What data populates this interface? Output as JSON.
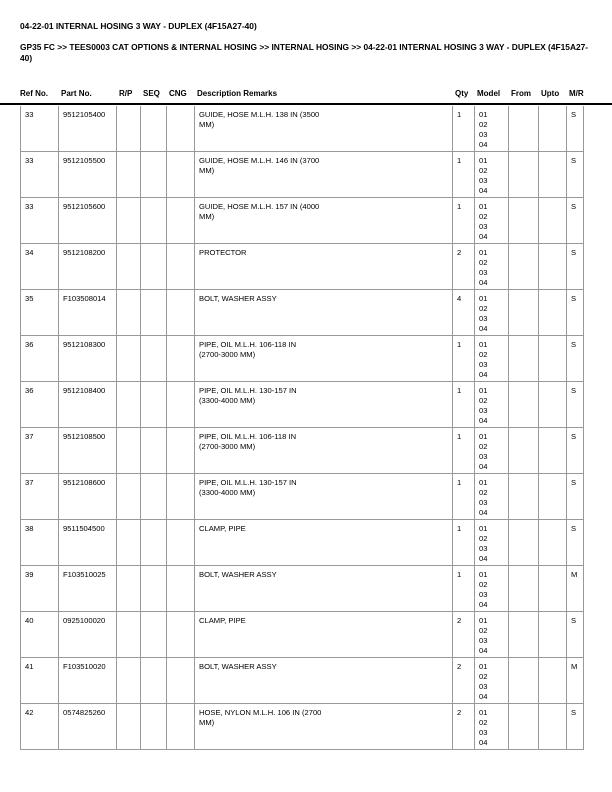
{
  "title": "04-22-01 INTERNAL HOSING 3 WAY - DUPLEX (4F15A27-40)",
  "breadcrumb": "GP35 FC >> TEES0003 CAT OPTIONS & INTERNAL HOSING >> INTERNAL HOSING >> 04-22-01 INTERNAL HOSING 3 WAY - DUPLEX (4F15A27-40)",
  "columns": [
    "Ref No.",
    "Part No.",
    "R/P",
    "SEQ",
    "CNG",
    "Description Remarks",
    "Qty",
    "Model",
    "From",
    "Upto",
    "M/R"
  ],
  "rows": [
    {
      "ref": "33",
      "part": "9512105400",
      "desc": "GUIDE, HOSE M.L.H. 138 IN (3500\nMM)",
      "qty": "1",
      "model": "01\n02\n03\n04",
      "mr": "S"
    },
    {
      "ref": "33",
      "part": "9512105500",
      "desc": "GUIDE, HOSE M.L.H. 146 IN (3700\nMM)",
      "qty": "1",
      "model": "01\n02\n03\n04",
      "mr": "S"
    },
    {
      "ref": "33",
      "part": "9512105600",
      "desc": "GUIDE, HOSE M.L.H. 157 IN (4000\nMM)",
      "qty": "1",
      "model": "01\n02\n03\n04",
      "mr": "S"
    },
    {
      "ref": "34",
      "part": "9512108200",
      "desc": "PROTECTOR",
      "qty": "2",
      "model": "01\n02\n03\n04",
      "mr": "S"
    },
    {
      "ref": "35",
      "part": "F103508014",
      "desc": "BOLT, WASHER ASSY",
      "qty": "4",
      "model": "01\n02\n03\n04",
      "mr": "S"
    },
    {
      "ref": "36",
      "part": "9512108300",
      "desc": "PIPE, OIL M.L.H. 106-118 IN\n(2700-3000 MM)",
      "qty": "1",
      "model": "01\n02\n03\n04",
      "mr": "S"
    },
    {
      "ref": "36",
      "part": "9512108400",
      "desc": "PIPE, OIL M.L.H. 130-157 IN\n(3300-4000 MM)",
      "qty": "1",
      "model": "01\n02\n03\n04",
      "mr": "S"
    },
    {
      "ref": "37",
      "part": "9512108500",
      "desc": "PIPE, OIL M.L.H. 106-118 IN\n(2700-3000 MM)",
      "qty": "1",
      "model": "01\n02\n03\n04",
      "mr": "S"
    },
    {
      "ref": "37",
      "part": "9512108600",
      "desc": "PIPE, OIL M.L.H. 130-157 IN\n(3300-4000 MM)",
      "qty": "1",
      "model": "01\n02\n03\n04",
      "mr": "S"
    },
    {
      "ref": "38",
      "part": "9511504500",
      "desc": "CLAMP, PIPE",
      "qty": "1",
      "model": "01\n02\n03\n04",
      "mr": "S"
    },
    {
      "ref": "39",
      "part": "F103510025",
      "desc": "BOLT, WASHER ASSY",
      "qty": "1",
      "model": "01\n02\n03\n04",
      "mr": "M"
    },
    {
      "ref": "40",
      "part": "0925100020",
      "desc": "CLAMP, PIPE",
      "qty": "2",
      "model": "01\n02\n03\n04",
      "mr": "S"
    },
    {
      "ref": "41",
      "part": "F103510020",
      "desc": "BOLT, WASHER ASSY",
      "qty": "2",
      "model": "01\n02\n03\n04",
      "mr": "M"
    },
    {
      "ref": "42",
      "part": "0574825260",
      "desc": "HOSE, NYLON M.L.H. 106 IN (2700\nMM)",
      "qty": "2",
      "model": "01\n02\n03\n04",
      "mr": "S"
    }
  ]
}
